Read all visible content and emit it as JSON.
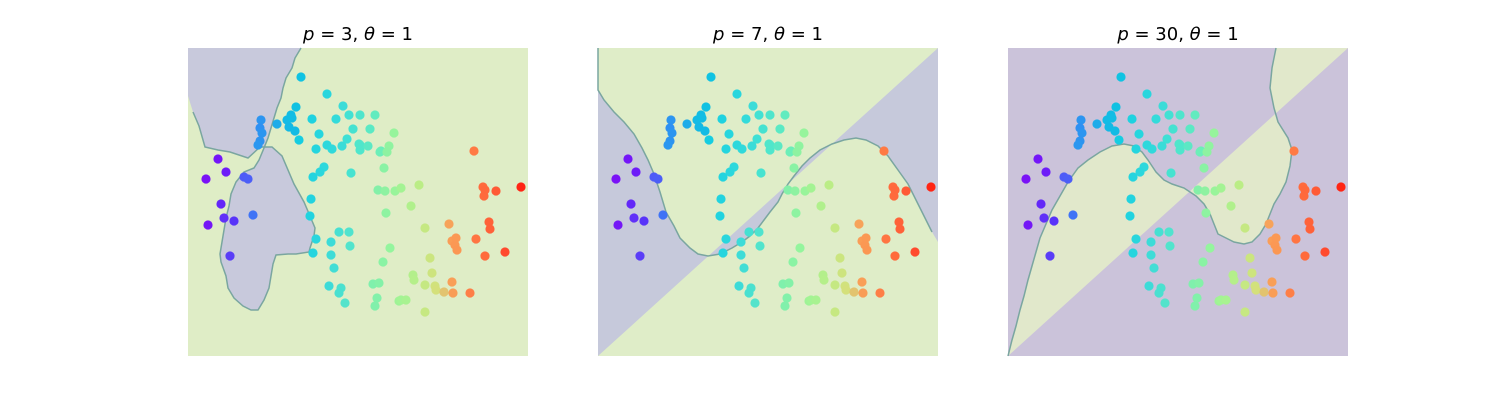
{
  "chart_data": [
    {
      "type": "scatter",
      "title": "p = 3, θ = 1",
      "title_parts": {
        "p_sym": "p",
        "p_val": "= 3,",
        "t_sym": "θ",
        "t_val": "= 1"
      },
      "axes_visible": false,
      "xlim": [
        0,
        340
      ],
      "ylim": [
        0,
        308
      ],
      "region_colors": {
        "class_a": "#c8c9dc",
        "class_b": "#dfedc6"
      },
      "boundary": [
        [
          113,
          0
        ],
        [
          113,
          0
        ],
        [
          107,
          10
        ],
        [
          104,
          20
        ],
        [
          98,
          30
        ],
        [
          95,
          40
        ],
        [
          93,
          50
        ],
        [
          89,
          60
        ],
        [
          86,
          70
        ],
        [
          83,
          80
        ],
        [
          80,
          90
        ],
        [
          76,
          100
        ],
        [
          71,
          112
        ],
        [
          66,
          120
        ],
        [
          56,
          124
        ],
        [
          48,
          134
        ],
        [
          43,
          146
        ],
        [
          41,
          158
        ],
        [
          38,
          170
        ],
        [
          36,
          182
        ],
        [
          34,
          194
        ],
        [
          32,
          206
        ],
        [
          33,
          214
        ],
        [
          38,
          228
        ],
        [
          40,
          240
        ],
        [
          46,
          250
        ],
        [
          55,
          258
        ],
        [
          63,
          262
        ],
        [
          70,
          262
        ],
        [
          76,
          252
        ],
        [
          81,
          240
        ],
        [
          83,
          228
        ],
        [
          85,
          216
        ],
        [
          88,
          207
        ],
        [
          100,
          206
        ],
        [
          108,
          206
        ],
        [
          121,
          204
        ],
        [
          122,
          200
        ],
        [
          126,
          188
        ],
        [
          127,
          180
        ],
        [
          122,
          168
        ],
        [
          116,
          154
        ],
        [
          106,
          136
        ],
        [
          94,
          108
        ],
        [
          84,
          99
        ],
        [
          72,
          99
        ],
        [
          60,
          110
        ],
        [
          42,
          104
        ],
        [
          30,
          102
        ],
        [
          17,
          99
        ],
        [
          11,
          78
        ],
        [
          5,
          64
        ],
        [
          0,
          48
        ],
        [
          0,
          0
        ]
      ]
    },
    {
      "type": "scatter",
      "title": "p = 7, θ = 1",
      "title_parts": {
        "p_sym": "p",
        "p_val": "= 7,",
        "t_sym": "θ",
        "t_val": "= 1"
      },
      "axes_visible": false,
      "xlim": [
        0,
        340
      ],
      "ylim": [
        0,
        308
      ],
      "region_colors": {
        "class_a": "#c6c9db",
        "class_b": "#dfedc8"
      },
      "boundary": [
        [
          340,
          0
        ],
        [
          0,
          0
        ],
        [
          0,
          42
        ],
        [
          6,
          52
        ],
        [
          16,
          64
        ],
        [
          26,
          74
        ],
        [
          36,
          86
        ],
        [
          44,
          100
        ],
        [
          50,
          112
        ],
        [
          56,
          126
        ],
        [
          62,
          144
        ],
        [
          68,
          164
        ],
        [
          76,
          178
        ],
        [
          82,
          190
        ],
        [
          92,
          200
        ],
        [
          100,
          206
        ],
        [
          110,
          208
        ],
        [
          122,
          206
        ],
        [
          134,
          200
        ],
        [
          144,
          194
        ],
        [
          152,
          188
        ],
        [
          160,
          180
        ],
        [
          166,
          172
        ],
        [
          172,
          164
        ],
        [
          180,
          154
        ],
        [
          184,
          146
        ],
        [
          190,
          136
        ],
        [
          196,
          128
        ],
        [
          204,
          118
        ],
        [
          212,
          110
        ],
        [
          222,
          102
        ],
        [
          234,
          96
        ],
        [
          246,
          92
        ],
        [
          258,
          90
        ],
        [
          268,
          92
        ],
        [
          280,
          98
        ],
        [
          290,
          108
        ],
        [
          300,
          122
        ],
        [
          310,
          136
        ],
        [
          318,
          152
        ],
        [
          326,
          168
        ],
        [
          334,
          184
        ],
        [
          340,
          194
        ]
      ]
    },
    {
      "type": "scatter",
      "title": "p = 30, θ = 1",
      "title_parts": {
        "p_sym": "p",
        "p_val": "= 30,",
        "t_sym": "θ",
        "t_val": "= 1"
      },
      "axes_visible": false,
      "xlim": [
        0,
        340
      ],
      "ylim": [
        0,
        308
      ],
      "region_colors": {
        "class_a": "#cbc3da",
        "class_b": "#e1e8cb"
      },
      "boundary": [
        [
          340,
          0
        ],
        [
          268,
          0
        ],
        [
          264,
          20
        ],
        [
          262,
          40
        ],
        [
          266,
          60
        ],
        [
          270,
          74
        ],
        [
          280,
          90
        ],
        [
          284,
          102
        ],
        [
          282,
          118
        ],
        [
          278,
          134
        ],
        [
          272,
          146
        ],
        [
          266,
          156
        ],
        [
          262,
          166
        ],
        [
          258,
          176
        ],
        [
          252,
          186
        ],
        [
          244,
          194
        ],
        [
          236,
          196
        ],
        [
          226,
          194
        ],
        [
          218,
          190
        ],
        [
          210,
          186
        ],
        [
          206,
          176
        ],
        [
          202,
          166
        ],
        [
          196,
          156
        ],
        [
          188,
          148
        ],
        [
          176,
          140
        ],
        [
          164,
          136
        ],
        [
          156,
          132
        ],
        [
          148,
          124
        ],
        [
          140,
          112
        ],
        [
          134,
          104
        ],
        [
          126,
          98
        ],
        [
          116,
          96
        ],
        [
          104,
          98
        ],
        [
          92,
          104
        ],
        [
          80,
          112
        ],
        [
          70,
          120
        ],
        [
          60,
          134
        ],
        [
          52,
          148
        ],
        [
          44,
          162
        ],
        [
          38,
          176
        ],
        [
          32,
          190
        ],
        [
          28,
          204
        ],
        [
          24,
          218
        ],
        [
          20,
          232
        ],
        [
          16,
          248
        ],
        [
          12,
          262
        ],
        [
          8,
          278
        ],
        [
          4,
          292
        ],
        [
          0,
          308
        ],
        [
          340,
          308
        ]
      ]
    }
  ],
  "points": [
    {
      "x": 18,
      "y": 131,
      "c": "#7a12f6"
    },
    {
      "x": 30,
      "y": 111,
      "c": "#7416f8"
    },
    {
      "x": 38,
      "y": 124,
      "c": "#6d1cf8"
    },
    {
      "x": 33,
      "y": 156,
      "c": "#6327f8"
    },
    {
      "x": 36,
      "y": 170,
      "c": "#6030f8"
    },
    {
      "x": 20,
      "y": 177,
      "c": "#7417f6"
    },
    {
      "x": 46,
      "y": 173,
      "c": "#5833f9"
    },
    {
      "x": 42,
      "y": 208,
      "c": "#5a3df7"
    },
    {
      "x": 56,
      "y": 129,
      "c": "#4e5bf7"
    },
    {
      "x": 60,
      "y": 131,
      "c": "#4c5ef7"
    },
    {
      "x": 65,
      "y": 167,
      "c": "#3f73f6"
    },
    {
      "x": 73,
      "y": 72,
      "c": "#2c95f0"
    },
    {
      "x": 72,
      "y": 80,
      "c": "#2e90f2"
    },
    {
      "x": 74,
      "y": 85,
      "c": "#2b95f0"
    },
    {
      "x": 72,
      "y": 93,
      "c": "#2d93ef"
    },
    {
      "x": 70,
      "y": 97,
      "c": "#2b97f0"
    },
    {
      "x": 89,
      "y": 76,
      "c": "#1eace9"
    },
    {
      "x": 99,
      "y": 72,
      "c": "#13bbe5"
    },
    {
      "x": 103,
      "y": 67,
      "c": "#12bce4"
    },
    {
      "x": 101,
      "y": 79,
      "c": "#14b9e5"
    },
    {
      "x": 104,
      "y": 70,
      "c": "#12bde4"
    },
    {
      "x": 107,
      "y": 83,
      "c": "#13bbe4"
    },
    {
      "x": 108,
      "y": 59,
      "c": "#10c1e2"
    },
    {
      "x": 113,
      "y": 29,
      "c": "#10c3e2"
    },
    {
      "x": 111,
      "y": 92,
      "c": "#15cde1"
    },
    {
      "x": 124,
      "y": 71,
      "c": "#1ed2e0"
    },
    {
      "x": 131,
      "y": 86,
      "c": "#26d6de"
    },
    {
      "x": 139,
      "y": 46,
      "c": "#28d6dd"
    },
    {
      "x": 139,
      "y": 97,
      "c": "#2dd8dc"
    },
    {
      "x": 148,
      "y": 71,
      "c": "#34dbda"
    },
    {
      "x": 155,
      "y": 58,
      "c": "#3cdcd8"
    },
    {
      "x": 159,
      "y": 91,
      "c": "#3ee0d5"
    },
    {
      "x": 161,
      "y": 67,
      "c": "#42e1d3"
    },
    {
      "x": 165,
      "y": 81,
      "c": "#45e2d1"
    },
    {
      "x": 172,
      "y": 102,
      "c": "#4fe6cc"
    },
    {
      "x": 172,
      "y": 97,
      "c": "#51e7ca"
    },
    {
      "x": 182,
      "y": 81,
      "c": "#5be9c4"
    },
    {
      "x": 180,
      "y": 98,
      "c": "#5ce8c4"
    },
    {
      "x": 187,
      "y": 67,
      "c": "#62ebbf"
    },
    {
      "x": 193,
      "y": 103,
      "c": "#6bedb9"
    },
    {
      "x": 192,
      "y": 104,
      "c": "#6ceeb8"
    },
    {
      "x": 172,
      "y": 67,
      "c": "#4fe5cc"
    },
    {
      "x": 171,
      "y": 96,
      "c": "#50e6cb"
    },
    {
      "x": 163,
      "y": 125,
      "c": "#46e3d0"
    },
    {
      "x": 154,
      "y": 98,
      "c": "#3bdcd8"
    },
    {
      "x": 144,
      "y": 101,
      "c": "#30d9db"
    },
    {
      "x": 128,
      "y": 101,
      "c": "#25d5de"
    },
    {
      "x": 136,
      "y": 119,
      "c": "#2ed8dc"
    },
    {
      "x": 132,
      "y": 124,
      "c": "#2bd7dd"
    },
    {
      "x": 125,
      "y": 129,
      "c": "#24d4df"
    },
    {
      "x": 123,
      "y": 151,
      "c": "#22d3df"
    },
    {
      "x": 122,
      "y": 168,
      "c": "#21d3df"
    },
    {
      "x": 128,
      "y": 191,
      "c": "#2ad6dd"
    },
    {
      "x": 125,
      "y": 205,
      "c": "#26d5de"
    },
    {
      "x": 143,
      "y": 194,
      "c": "#3cdcd8"
    },
    {
      "x": 143,
      "y": 207,
      "c": "#3edcd7"
    },
    {
      "x": 151,
      "y": 184,
      "c": "#46e0d2"
    },
    {
      "x": 161,
      "y": 184,
      "c": "#50e3ce"
    },
    {
      "x": 162,
      "y": 198,
      "c": "#52e4cc"
    },
    {
      "x": 146,
      "y": 220,
      "c": "#42ddd5"
    },
    {
      "x": 141,
      "y": 238,
      "c": "#3ddbd8"
    },
    {
      "x": 153,
      "y": 240,
      "c": "#4be1cf"
    },
    {
      "x": 151,
      "y": 245,
      "c": "#49e0d0"
    },
    {
      "x": 157,
      "y": 255,
      "c": "#54e3cb"
    },
    {
      "x": 185,
      "y": 236,
      "c": "#7ff0ac"
    },
    {
      "x": 191,
      "y": 235,
      "c": "#84f1a8"
    },
    {
      "x": 189,
      "y": 250,
      "c": "#82f1aa"
    },
    {
      "x": 195,
      "y": 214,
      "c": "#8af3a4"
    },
    {
      "x": 202,
      "y": 200,
      "c": "#94f59d"
    },
    {
      "x": 187,
      "y": 258,
      "c": "#81f0ab"
    },
    {
      "x": 211,
      "y": 253,
      "c": "#9ef396"
    },
    {
      "x": 213,
      "y": 252,
      "c": "#a2f494"
    },
    {
      "x": 218,
      "y": 252,
      "c": "#a8f291"
    },
    {
      "x": 207,
      "y": 143,
      "c": "#98f49a"
    },
    {
      "x": 206,
      "y": 85,
      "c": "#96f49c"
    },
    {
      "x": 201,
      "y": 98,
      "c": "#90f3a0"
    },
    {
      "x": 199,
      "y": 104,
      "c": "#8ef2a1"
    },
    {
      "x": 196,
      "y": 120,
      "c": "#8af2a4"
    },
    {
      "x": 190,
      "y": 142,
      "c": "#84f0a8"
    },
    {
      "x": 197,
      "y": 143,
      "c": "#8ef2a1"
    },
    {
      "x": 198,
      "y": 165,
      "c": "#8ef3a1"
    },
    {
      "x": 213,
      "y": 140,
      "c": "#a3f393"
    },
    {
      "x": 223,
      "y": 158,
      "c": "#b0f08c"
    },
    {
      "x": 231,
      "y": 137,
      "c": "#bbed86"
    },
    {
      "x": 225,
      "y": 227,
      "c": "#b3ef8b"
    },
    {
      "x": 237,
      "y": 180,
      "c": "#c5e882"
    },
    {
      "x": 242,
      "y": 210,
      "c": "#cbe57f"
    },
    {
      "x": 237,
      "y": 237,
      "c": "#c5e882"
    },
    {
      "x": 244,
      "y": 225,
      "c": "#cde47e"
    },
    {
      "x": 247,
      "y": 238,
      "c": "#d1e27c"
    },
    {
      "x": 226,
      "y": 232,
      "c": "#b5ef8a"
    },
    {
      "x": 237,
      "y": 264,
      "c": "#c6e882"
    },
    {
      "x": 248,
      "y": 242,
      "c": "#d4e07b"
    },
    {
      "x": 256,
      "y": 244,
      "c": "#e2c36f"
    },
    {
      "x": 261,
      "y": 176,
      "c": "#f7a35a"
    },
    {
      "x": 264,
      "y": 193,
      "c": "#fa9d56"
    },
    {
      "x": 267,
      "y": 197,
      "c": "#fb9854"
    },
    {
      "x": 268,
      "y": 190,
      "c": "#fb9954"
    },
    {
      "x": 269,
      "y": 202,
      "c": "#fb9753"
    },
    {
      "x": 264,
      "y": 234,
      "c": "#f99f57"
    },
    {
      "x": 265,
      "y": 245,
      "c": "#f99d56"
    },
    {
      "x": 282,
      "y": 245,
      "c": "#fe7f47"
    },
    {
      "x": 288,
      "y": 191,
      "c": "#ff7543"
    },
    {
      "x": 297,
      "y": 208,
      "c": "#ff6a3c"
    },
    {
      "x": 295,
      "y": 139,
      "c": "#ff6b3d"
    },
    {
      "x": 286,
      "y": 103,
      "c": "#ff7a44"
    },
    {
      "x": 296,
      "y": 148,
      "c": "#ff6a3c"
    },
    {
      "x": 297,
      "y": 142,
      "c": "#ff693c"
    },
    {
      "x": 301,
      "y": 174,
      "c": "#ff6239"
    },
    {
      "x": 302,
      "y": 181,
      "c": "#ff6139"
    },
    {
      "x": 308,
      "y": 143,
      "c": "#ff5a35"
    },
    {
      "x": 317,
      "y": 204,
      "c": "#ff4a2e"
    },
    {
      "x": 333,
      "y": 139,
      "c": "#ff2514"
    }
  ]
}
